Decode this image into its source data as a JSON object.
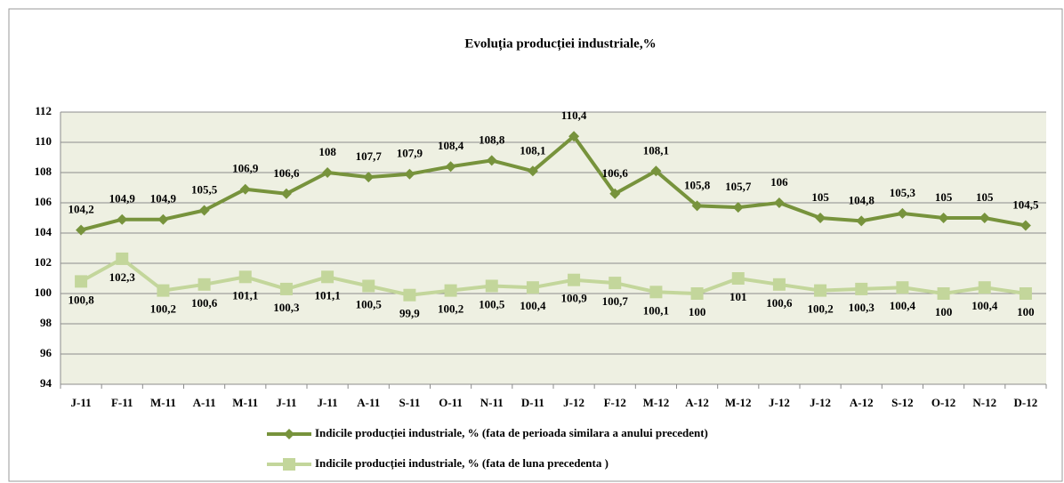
{
  "chart_data": {
    "type": "line",
    "title": "Evoluția producției industriale,%",
    "categories": [
      "J-11",
      "F-11",
      "M-11",
      "A-11",
      "M-11",
      "J-11",
      "J-11",
      "A-11",
      "S-11",
      "O-11",
      "N-11",
      "D-11",
      "J-12",
      "F-12",
      "M-12",
      "A-12",
      "M-12",
      "J-12",
      "J-12",
      "A-12",
      "S-12",
      "O-12",
      "N-12",
      "D-12"
    ],
    "series": [
      {
        "name": "Indicile producției industriale, % (fata de perioada similara a anului precedent)",
        "color": "#77933c",
        "marker": "diamond",
        "values": [
          104.2,
          104.9,
          104.9,
          105.5,
          106.9,
          106.6,
          108,
          107.7,
          107.9,
          108.4,
          108.8,
          108.1,
          110.4,
          106.6,
          108.1,
          105.8,
          105.7,
          106,
          105,
          104.8,
          105.3,
          105,
          105,
          104.5
        ],
        "value_labels": [
          "104,2",
          "104,9",
          "104,9",
          "105,5",
          "106,9",
          "106,6",
          "108",
          "107,7",
          "107,9",
          "108,4",
          "108,8",
          "108,1",
          "110,4",
          "106,6",
          "108,1",
          "105,8",
          "105,7",
          "106",
          "105",
          "104,8",
          "105,3",
          "105",
          "105",
          "104,5"
        ]
      },
      {
        "name": "Indicile producției industriale, % (fata de luna precedenta )",
        "color": "#c3d69b",
        "marker": "square",
        "values": [
          100.8,
          102.3,
          100.2,
          100.6,
          101.1,
          100.3,
          101.1,
          100.5,
          99.9,
          100.2,
          100.5,
          100.4,
          100.9,
          100.7,
          100.1,
          100,
          101,
          100.6,
          100.2,
          100.3,
          100.4,
          100,
          100.4,
          100
        ],
        "value_labels": [
          "100,8",
          "102,3",
          "100,2",
          "100,6",
          "101,1",
          "100,3",
          "101,1",
          "100,5",
          "99,9",
          "100,2",
          "100,5",
          "100,4",
          "100,9",
          "100,7",
          "100,1",
          "100",
          "101",
          "100,6",
          "100,2",
          "100,3",
          "100,4",
          "100",
          "100,4",
          "100"
        ]
      }
    ],
    "ylim": [
      94,
      112
    ],
    "yticks": [
      94,
      96,
      98,
      100,
      102,
      104,
      106,
      108,
      110,
      112
    ],
    "grid": true
  }
}
